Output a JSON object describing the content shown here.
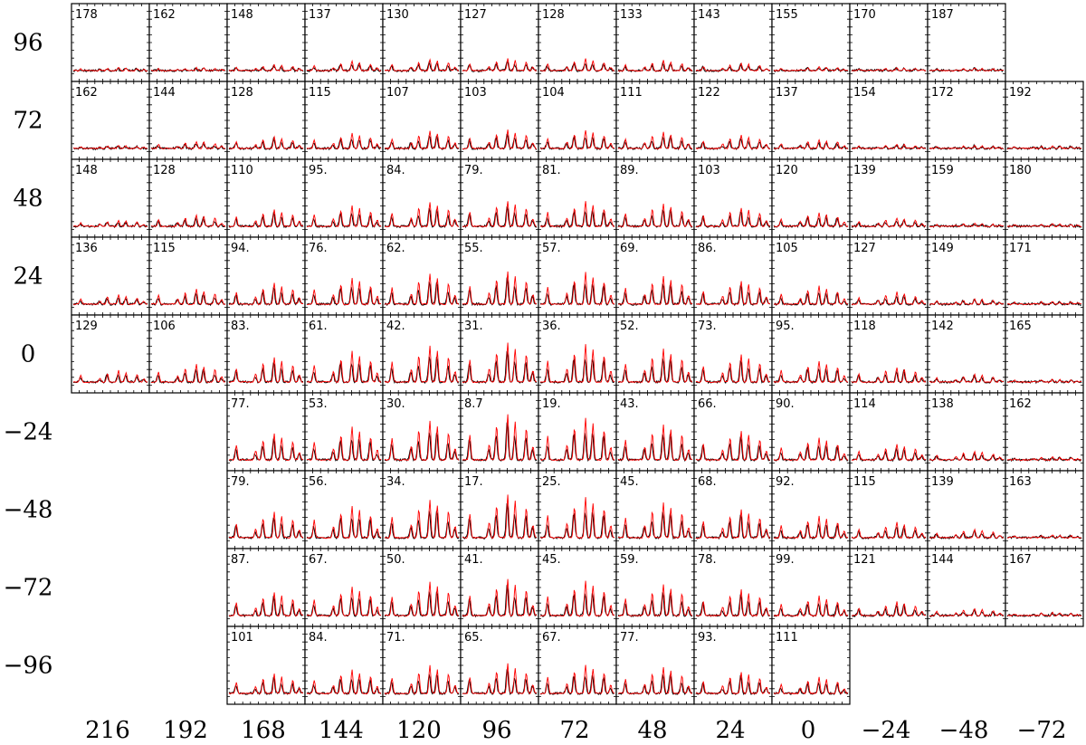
{
  "chart_data": {
    "type": "spectral-grid",
    "x_offset_labels": [
      "216",
      "192",
      "168",
      "144",
      "120",
      "96",
      "72",
      "48",
      "24",
      "0",
      "−24",
      "−48",
      "−72"
    ],
    "y_offset_labels": [
      "96",
      "72",
      "48",
      "24",
      "0",
      "−24",
      "−48",
      "−72",
      "−96"
    ],
    "rows": [
      {
        "y": "96",
        "start_col": 0,
        "values": [
          "178",
          "162",
          "148",
          "137",
          "130",
          "127",
          "128",
          "133",
          "143",
          "155",
          "170",
          "187"
        ]
      },
      {
        "y": "72",
        "start_col": 0,
        "values": [
          "162",
          "144",
          "128",
          "115",
          "107",
          "103",
          "104",
          "111",
          "122",
          "137",
          "154",
          "172",
          "192"
        ]
      },
      {
        "y": "48",
        "start_col": 0,
        "values": [
          "148",
          "128",
          "110",
          "95.",
          "84.",
          "79.",
          "81.",
          "89.",
          "103",
          "120",
          "139",
          "159",
          "180"
        ]
      },
      {
        "y": "24",
        "start_col": 0,
        "values": [
          "136",
          "115",
          "94.",
          "76.",
          "62.",
          "55.",
          "57.",
          "69.",
          "86.",
          "105",
          "127",
          "149",
          "171"
        ]
      },
      {
        "y": "0",
        "start_col": 0,
        "values": [
          "129",
          "106",
          "83.",
          "61.",
          "42.",
          "31.",
          "36.",
          "52.",
          "73.",
          "95.",
          "118",
          "142",
          "165"
        ]
      },
      {
        "y": "−24",
        "start_col": 2,
        "values": [
          "77.",
          "53.",
          "30.",
          "8.7",
          "19.",
          "43.",
          "66.",
          "90.",
          "114",
          "138",
          "162"
        ]
      },
      {
        "y": "−48",
        "start_col": 2,
        "values": [
          "79.",
          "56.",
          "34.",
          "17.",
          "25.",
          "45.",
          "68.",
          "92.",
          "115",
          "139",
          "163"
        ]
      },
      {
        "y": "−72",
        "start_col": 2,
        "values": [
          "87.",
          "67.",
          "50.",
          "41.",
          "45.",
          "59.",
          "78.",
          "99.",
          "121",
          "144",
          "167"
        ]
      },
      {
        "y": "−96",
        "start_col": 2,
        "values": [
          "101",
          "84.",
          "71.",
          "65.",
          "67.",
          "77.",
          "93.",
          "111"
        ]
      }
    ],
    "series_colors": {
      "observed": "#000000",
      "model": "#ff0000"
    }
  }
}
